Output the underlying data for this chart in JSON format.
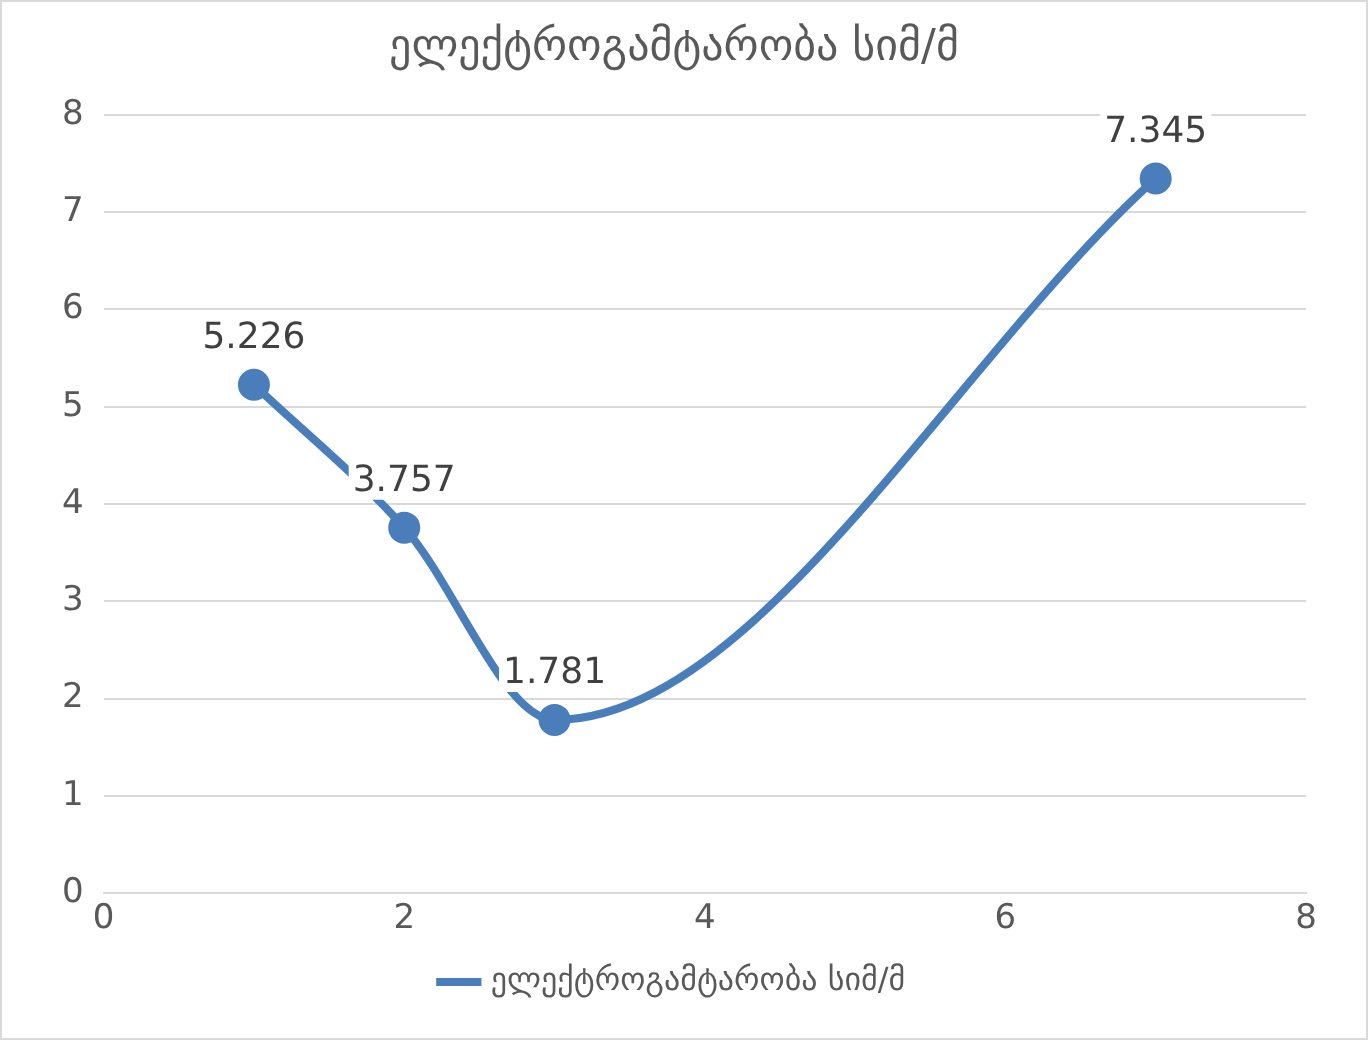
{
  "chart_data": {
    "type": "line",
    "title": "ელექტროგამტარობა სიმ/მ",
    "x": [
      1,
      2,
      3,
      7
    ],
    "series": [
      {
        "name": "ელექტროგამტარობა სიმ/მ",
        "color": "#4a7ebb",
        "values": [
          5.226,
          3.757,
          1.781,
          7.345
        ]
      }
    ],
    "xlim": [
      0,
      8
    ],
    "xticks": [
      0,
      2,
      4,
      6,
      8
    ],
    "ylim": [
      0,
      8
    ],
    "yticks": [
      0,
      1,
      2,
      3,
      4,
      5,
      6,
      7,
      8
    ],
    "grid": "y",
    "legend": "bottom",
    "marker": "circle",
    "line_style": "solid",
    "data_labels": true
  }
}
